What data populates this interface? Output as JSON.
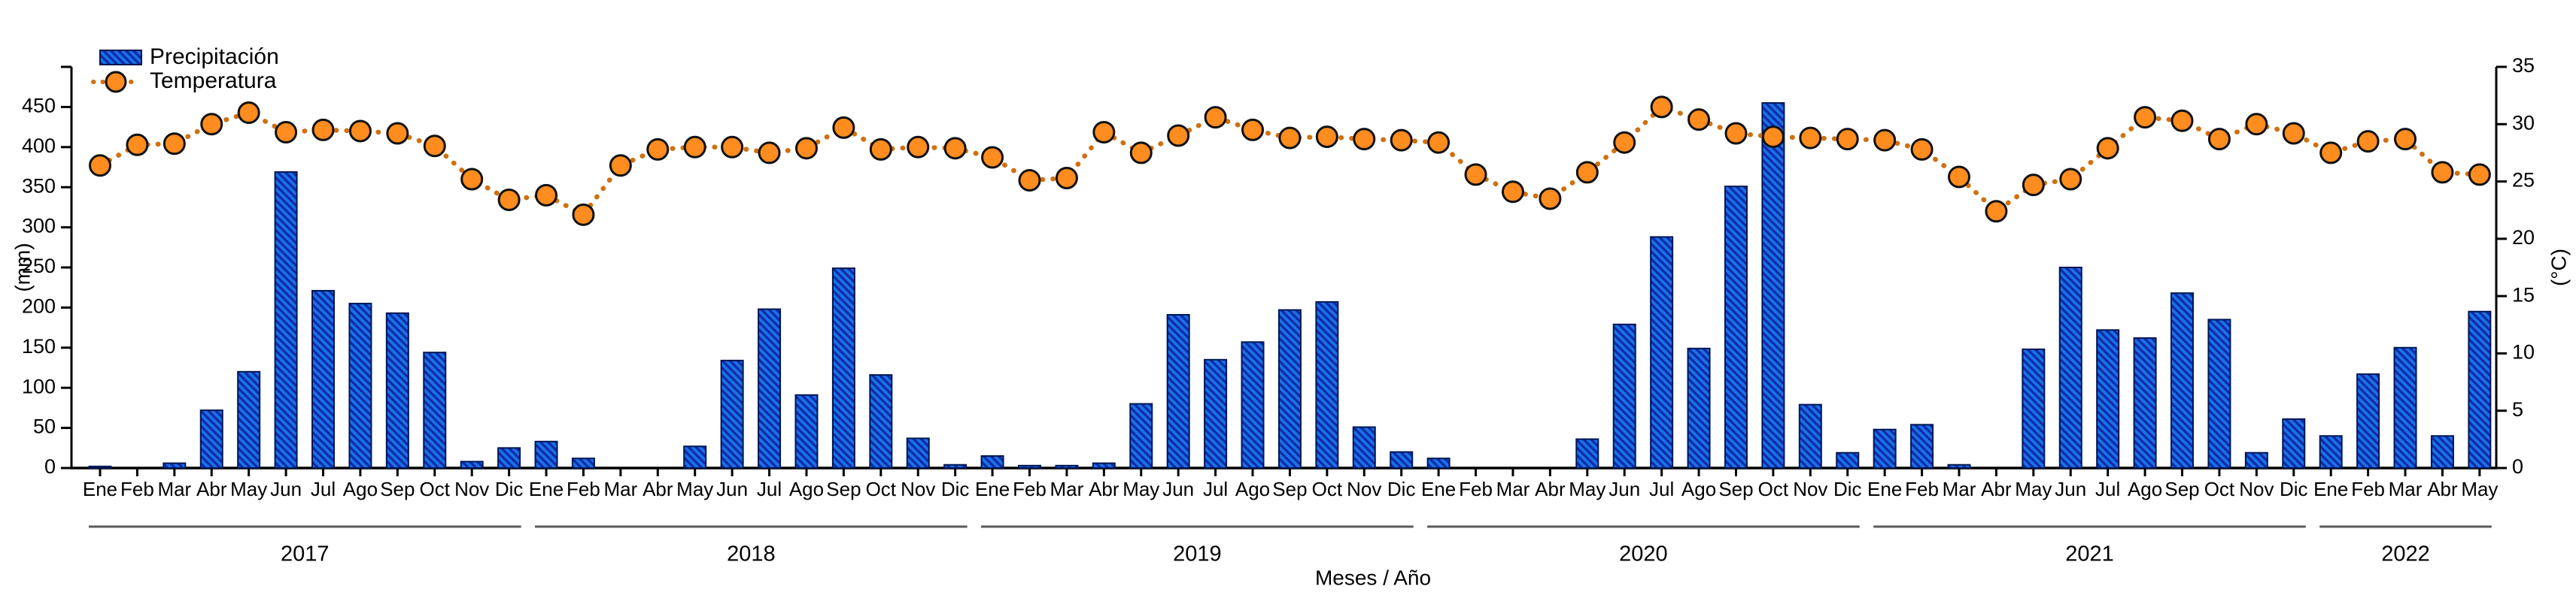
{
  "legend": {
    "precipitation_label": "Precipitación",
    "temperature_label": "Temperatura"
  },
  "axes": {
    "left_title": "(mm)",
    "right_title": "(°C)",
    "bottom_title": "Meses / Año",
    "left_tick_labels": [
      "0",
      "50",
      "100",
      "150",
      "200",
      "250",
      "300",
      "350",
      "400",
      "450"
    ],
    "right_tick_labels": [
      "0",
      "5",
      "10",
      "15",
      "20",
      "25",
      "30",
      "35"
    ]
  },
  "colors": {
    "bar_fill": "#1d6fe8",
    "bar_hatch": "#0a2da5",
    "bar_border": "#001551",
    "temp_marker_fill": "#ff8c1e",
    "temp_marker_stroke": "#111111",
    "temp_line": "#cf7010",
    "axis": "#000000",
    "year_line": "#5a5a5a"
  },
  "chart_data": {
    "type": "bar+line",
    "title": "",
    "xlabel": "Meses / Año",
    "ylabel_left": "(mm)",
    "ylabel_right": "(°C)",
    "ylim_left": [
      0,
      500
    ],
    "ylim_right": [
      0,
      35
    ],
    "grid": false,
    "legend_position": "top-left",
    "month_labels": [
      "Ene",
      "Feb",
      "Mar",
      "Abr",
      "May",
      "Jun",
      "Jul",
      "Ago",
      "Sep",
      "Oct",
      "Nov",
      "Dic"
    ],
    "series": [
      {
        "name": "Precipitación",
        "type": "bar",
        "unit": "mm",
        "axis": "left"
      },
      {
        "name": "Temperatura",
        "type": "line",
        "unit": "°C",
        "axis": "right",
        "marker": "circle",
        "linestyle": "dotted"
      }
    ],
    "years": [
      {
        "year": "2017",
        "months": [
          "Ene",
          "Feb",
          "Mar",
          "Abr",
          "May",
          "Jun",
          "Jul",
          "Ago",
          "Sep",
          "Oct",
          "Nov",
          "Dic"
        ],
        "precipitation_mm": [
          2,
          0,
          6,
          72,
          120,
          369,
          221,
          205,
          193,
          144,
          8,
          25
        ],
        "temperature_c": [
          26.4,
          28.2,
          28.3,
          30.0,
          31.0,
          29.3,
          29.5,
          29.4,
          29.2,
          28.1,
          25.2,
          23.4
        ]
      },
      {
        "year": "2018",
        "months": [
          "Ene",
          "Feb",
          "Mar",
          "Abr",
          "May",
          "Jun",
          "Jul",
          "Ago",
          "Sep",
          "Oct",
          "Nov",
          "Dic"
        ],
        "precipitation_mm": [
          33,
          12,
          0,
          0,
          27,
          134,
          198,
          91,
          249,
          116,
          37,
          4
        ],
        "temperature_c": [
          23.8,
          22.1,
          26.4,
          27.8,
          28.0,
          28.0,
          27.5,
          27.9,
          29.7,
          27.8,
          28.0,
          27.9
        ]
      },
      {
        "year": "2019",
        "months": [
          "Ene",
          "Feb",
          "Mar",
          "Abr",
          "May",
          "Jun",
          "Jul",
          "Ago",
          "Sep",
          "Oct",
          "Nov",
          "Dic"
        ],
        "precipitation_mm": [
          15,
          3,
          3,
          6,
          80,
          191,
          135,
          157,
          197,
          207,
          51,
          20
        ],
        "temperature_c": [
          27.1,
          25.1,
          25.3,
          29.3,
          27.5,
          29.0,
          30.6,
          29.5,
          28.8,
          28.9,
          28.7,
          28.6
        ]
      },
      {
        "year": "2020",
        "months": [
          "Ene",
          "Feb",
          "Mar",
          "Abr",
          "May",
          "Jun",
          "Jul",
          "Ago",
          "Sep",
          "Oct",
          "Nov",
          "Dic"
        ],
        "precipitation_mm": [
          12,
          0,
          0,
          0,
          36,
          179,
          288,
          149,
          351,
          455,
          79,
          19
        ],
        "temperature_c": [
          28.4,
          25.6,
          24.1,
          23.5,
          25.8,
          28.4,
          31.5,
          30.4,
          29.2,
          28.9,
          28.8,
          28.7
        ]
      },
      {
        "year": "2021",
        "months": [
          "Ene",
          "Feb",
          "Mar",
          "Abr",
          "May",
          "Jun",
          "Jul",
          "Ago",
          "Sep",
          "Oct",
          "Nov",
          "Dic"
        ],
        "precipitation_mm": [
          48,
          54,
          4,
          0,
          148,
          250,
          172,
          162,
          218,
          185,
          19,
          61
        ],
        "temperature_c": [
          28.6,
          27.8,
          25.4,
          22.4,
          24.7,
          25.2,
          27.9,
          30.6,
          30.3,
          28.7,
          30.0,
          29.2
        ]
      },
      {
        "year": "2022",
        "months": [
          "Ene",
          "Feb",
          "Mar",
          "Abr",
          "May"
        ],
        "precipitation_mm": [
          40,
          117,
          150,
          40,
          195
        ],
        "temperature_c": [
          27.5,
          28.5,
          28.7,
          25.8,
          25.6
        ]
      }
    ]
  }
}
